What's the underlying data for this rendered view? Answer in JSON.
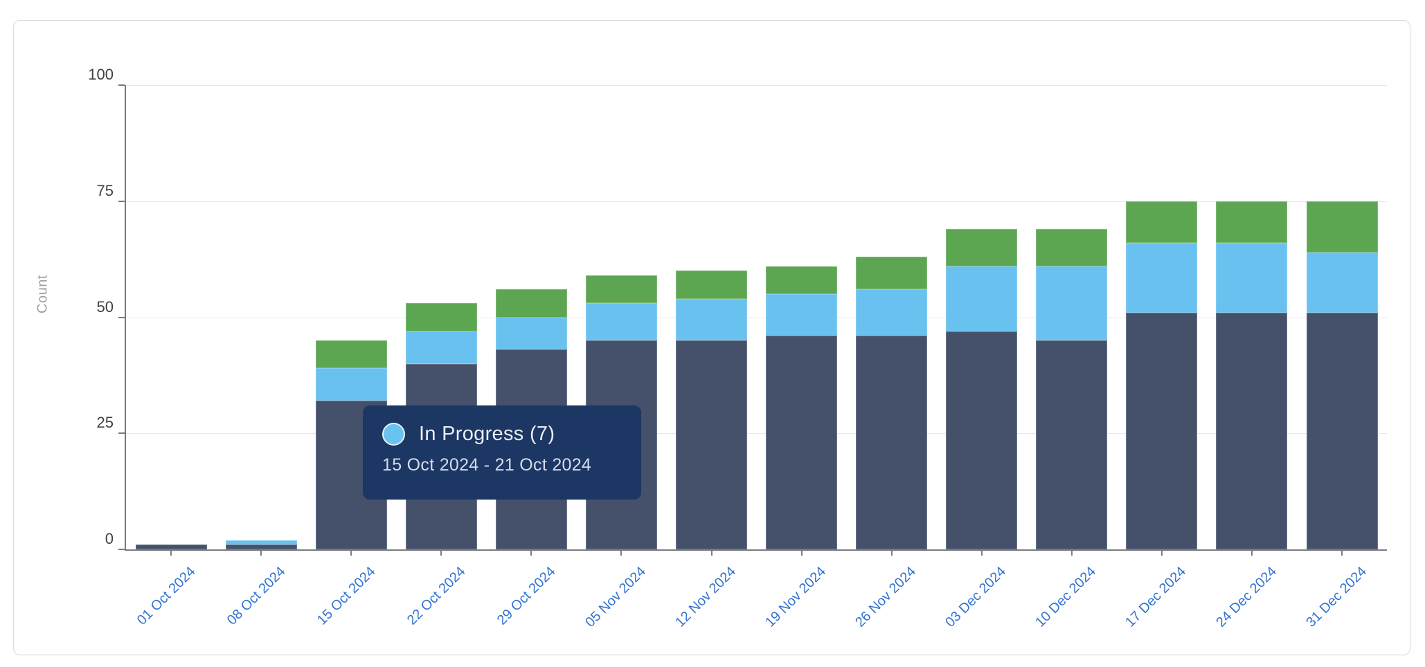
{
  "chart_data": {
    "type": "bar",
    "stacked": true,
    "grid": true,
    "legend": false,
    "ylabel": "Count",
    "xlabel": "",
    "ylim": [
      0,
      100
    ],
    "yticks": [
      0,
      25,
      50,
      75,
      100
    ],
    "categories": [
      "01 Oct 2024",
      "08 Oct 2024",
      "15 Oct 2024",
      "22 Oct 2024",
      "29 Oct 2024",
      "05 Nov 2024",
      "12 Nov 2024",
      "19 Nov 2024",
      "26 Nov 2024",
      "03 Dec 2024",
      "10 Dec 2024",
      "17 Dec 2024",
      "24 Dec 2024",
      "31 Dec 2024"
    ],
    "series": [
      {
        "name": null,
        "position": "bottom",
        "color": "#45516B",
        "values": [
          1,
          1,
          32,
          40,
          43,
          45,
          45,
          46,
          46,
          47,
          45,
          51,
          51,
          51
        ]
      },
      {
        "name": "In Progress",
        "position": "middle",
        "color": "#68C1EF",
        "values": [
          0,
          1,
          7,
          7,
          7,
          8,
          9,
          9,
          10,
          14,
          16,
          15,
          15,
          13
        ]
      },
      {
        "name": null,
        "position": "top",
        "color": "#5CA652",
        "values": [
          0,
          0,
          6,
          6,
          6,
          6,
          6,
          6,
          7,
          8,
          8,
          9,
          9,
          11
        ]
      }
    ],
    "totals": [
      1,
      2,
      45,
      53,
      56,
      59,
      60,
      61,
      63,
      69,
      69,
      75,
      75,
      75
    ]
  },
  "tooltip": {
    "text": "In Progress (7)",
    "series_label": "In Progress",
    "count": 7,
    "date_range": "15 Oct 2024 - 21 Oct 2024",
    "marker_color": "#69C3F0",
    "background": "#1C3763"
  },
  "colors": {
    "x_tick_label": "#3273D2",
    "y_tick_label": "#3E4045",
    "axis": "#7A7B7F",
    "gridline": "#E8E8EA",
    "card_border": "#DADBE0"
  }
}
